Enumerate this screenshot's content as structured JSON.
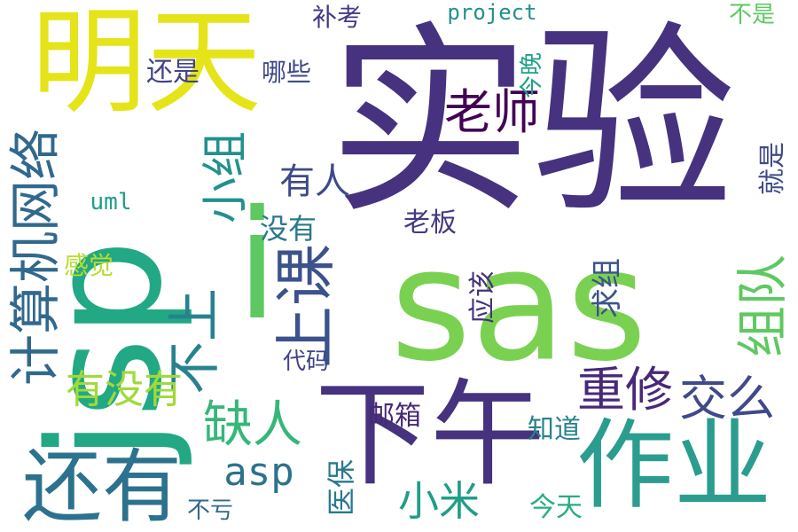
{
  "words": [
    {
      "id": "shiyan",
      "text": "实验",
      "color": "#46327e"
    },
    {
      "id": "sas",
      "text": "sas",
      "color": "#7ad151"
    },
    {
      "id": "jsp",
      "text": "jsp",
      "color": "#22a884"
    },
    {
      "id": "i",
      "text": "i",
      "color": "#5ec962"
    },
    {
      "id": "mingtian",
      "text": "明天",
      "color": "#e4e419"
    },
    {
      "id": "xiawu",
      "text": "下午",
      "color": "#46327e"
    },
    {
      "id": "zuoye",
      "text": "作业",
      "color": "#2a9d8f"
    },
    {
      "id": "haiyou",
      "text": "还有",
      "color": "#2c728e"
    },
    {
      "id": "jisuanjiwangluo",
      "text": "计算机网络",
      "color": "#31688e"
    },
    {
      "id": "shangke",
      "text": "上课",
      "color": "#3b528b"
    },
    {
      "id": "laoshi",
      "text": "老师",
      "color": "#440154"
    },
    {
      "id": "xiaozu",
      "text": "小组",
      "color": "#21918c"
    },
    {
      "id": "bushang",
      "text": "不上",
      "color": "#26828e"
    },
    {
      "id": "zudui",
      "text": "组队",
      "color": "#5ec962"
    },
    {
      "id": "chongxiu",
      "text": "重修",
      "color": "#482878"
    },
    {
      "id": "jiaome",
      "text": "交么",
      "color": "#3e4a89"
    },
    {
      "id": "queren",
      "text": "缺人",
      "color": "#35b779"
    },
    {
      "id": "youmeiyou",
      "text": "有没有",
      "color": "#a0da39"
    },
    {
      "id": "xiaomi",
      "text": "小米",
      "color": "#1f9e89"
    },
    {
      "id": "asp",
      "text": "asp",
      "color": "#2c728e"
    },
    {
      "id": "youren",
      "text": "有人",
      "color": "#3e4a89"
    },
    {
      "id": "meiyou",
      "text": "没有",
      "color": "#2a788e"
    },
    {
      "id": "laoban",
      "text": "老板",
      "color": "#443983"
    },
    {
      "id": "qiuzu",
      "text": "求组",
      "color": "#3b528b"
    },
    {
      "id": "yinggai",
      "text": "应该",
      "color": "#46327e"
    },
    {
      "id": "jiushi",
      "text": "就是",
      "color": "#3e4a89"
    },
    {
      "id": "ganjue",
      "text": "感觉",
      "color": "#b5de2b"
    },
    {
      "id": "uml",
      "text": "uml",
      "color": "#1f9e89"
    },
    {
      "id": "daima",
      "text": "代码",
      "color": "#414487"
    },
    {
      "id": "youxiang",
      "text": "邮箱",
      "color": "#482878"
    },
    {
      "id": "zhidao",
      "text": "知道",
      "color": "#26828e"
    },
    {
      "id": "yibao",
      "text": "医保",
      "color": "#2a788e"
    },
    {
      "id": "jintian",
      "text": "今天",
      "color": "#27ad81"
    },
    {
      "id": "bukui",
      "text": "不亏",
      "color": "#31688e"
    },
    {
      "id": "buxiao",
      "text": "补考",
      "color": "#443983"
    },
    {
      "id": "project",
      "text": "project",
      "color": "#21918c"
    },
    {
      "id": "bushi",
      "text": "不是",
      "color": "#5ec962"
    },
    {
      "id": "jinwan",
      "text": "今晚",
      "color": "#1fa187"
    },
    {
      "id": "nage",
      "text": "哪些",
      "color": "#3e4a89"
    },
    {
      "id": "haishi",
      "text": "还是",
      "color": "#414487"
    }
  ]
}
